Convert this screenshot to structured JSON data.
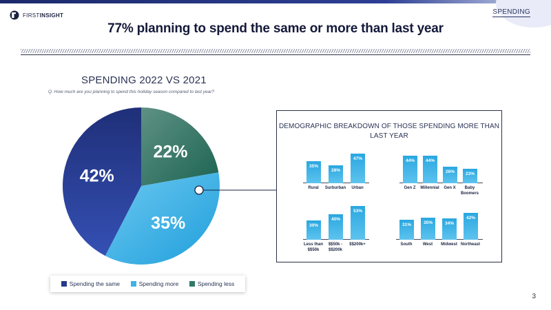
{
  "header": {
    "logo_light": "FIRST",
    "logo_bold": "INSIGHT",
    "section": "SPENDING",
    "title": "77% planning to spend the same or more than last year"
  },
  "colors": {
    "spending_same": "#243b8c",
    "spending_more": "#3fb2e6",
    "spending_less": "#2f7a68",
    "bar": "#35aee3"
  },
  "chart_data": [
    {
      "type": "pie",
      "title": "SPENDING 2022 VS 2021",
      "subtitle": "Q: How much are you planning to spend this holiday season compared to last year?",
      "slices": [
        {
          "name": "Spending less",
          "value": 22,
          "label": "22%"
        },
        {
          "name": "Spending more",
          "value": 35,
          "label": "35%"
        },
        {
          "name": "Spending the same",
          "value": 42,
          "label": "42%"
        }
      ],
      "legend": [
        "Spending the same",
        "Spending more",
        "Spending less"
      ],
      "legend_position": "bottom"
    },
    {
      "type": "bar",
      "title": "DEMOGRAPHIC BREAKDOWN OF THOSE SPENDING MORE THAN LAST YEAR",
      "panels": [
        {
          "id": "area",
          "categories": [
            "Rural",
            "Surburban",
            "Urban"
          ],
          "values": [
            35,
            28,
            47
          ],
          "labels": [
            "35%",
            "28%",
            "47%"
          ]
        },
        {
          "id": "generation",
          "categories": [
            "Gen Z",
            "Millennial",
            "Gen X",
            "Baby Boomers"
          ],
          "values": [
            44,
            44,
            26,
            23
          ],
          "labels": [
            "44%",
            "44%",
            "26%",
            "23%"
          ]
        },
        {
          "id": "income",
          "categories": [
            "Less than $$50k",
            "$$50k - $$200k",
            "$$200k+"
          ],
          "values": [
            30,
            40,
            53
          ],
          "labels": [
            "30%",
            "40%",
            "53%"
          ]
        },
        {
          "id": "region",
          "categories": [
            "South",
            "West",
            "Midwest",
            "Northeast"
          ],
          "values": [
            31,
            35,
            34,
            42
          ],
          "labels": [
            "31%",
            "35%",
            "34%",
            "42%"
          ]
        }
      ]
    }
  ],
  "page_number": "3"
}
